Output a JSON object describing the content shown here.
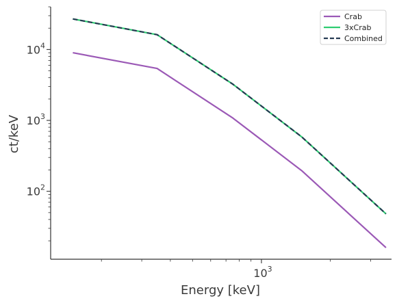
{
  "chart_data": {
    "type": "line",
    "xlabel": "Energy [keV]",
    "ylabel": "ct/keV",
    "xscale": "log",
    "yscale": "log",
    "xlim": [
      120,
      3700
    ],
    "ylim": [
      11,
      40000
    ],
    "x_tick_labels": [
      {
        "value": 1000,
        "base": "10",
        "exp": "3"
      }
    ],
    "y_tick_labels": [
      {
        "value": 100,
        "base": "10",
        "exp": "2"
      },
      {
        "value": 1000,
        "base": "10",
        "exp": "3"
      },
      {
        "value": 10000,
        "base": "10",
        "exp": "4"
      }
    ],
    "grid": false,
    "legend_position": "top-right",
    "series": [
      {
        "name": "Crab",
        "color": "#9b59b6",
        "style": "solid",
        "x": [
          150,
          350,
          750,
          1500,
          3500
        ],
        "y": [
          9000,
          5400,
          1080,
          195,
          16
        ]
      },
      {
        "name": "3xCrab",
        "color": "#2ecc71",
        "style": "solid",
        "x": [
          150,
          350,
          750,
          1500,
          3500
        ],
        "y": [
          27000,
          16200,
          3240,
          585,
          48
        ]
      },
      {
        "name": "Combined",
        "color": "#263b52",
        "style": "dashed",
        "x": [
          150,
          350,
          750,
          1500,
          3500
        ],
        "y": [
          27000,
          16200,
          3240,
          585,
          48
        ]
      }
    ]
  }
}
